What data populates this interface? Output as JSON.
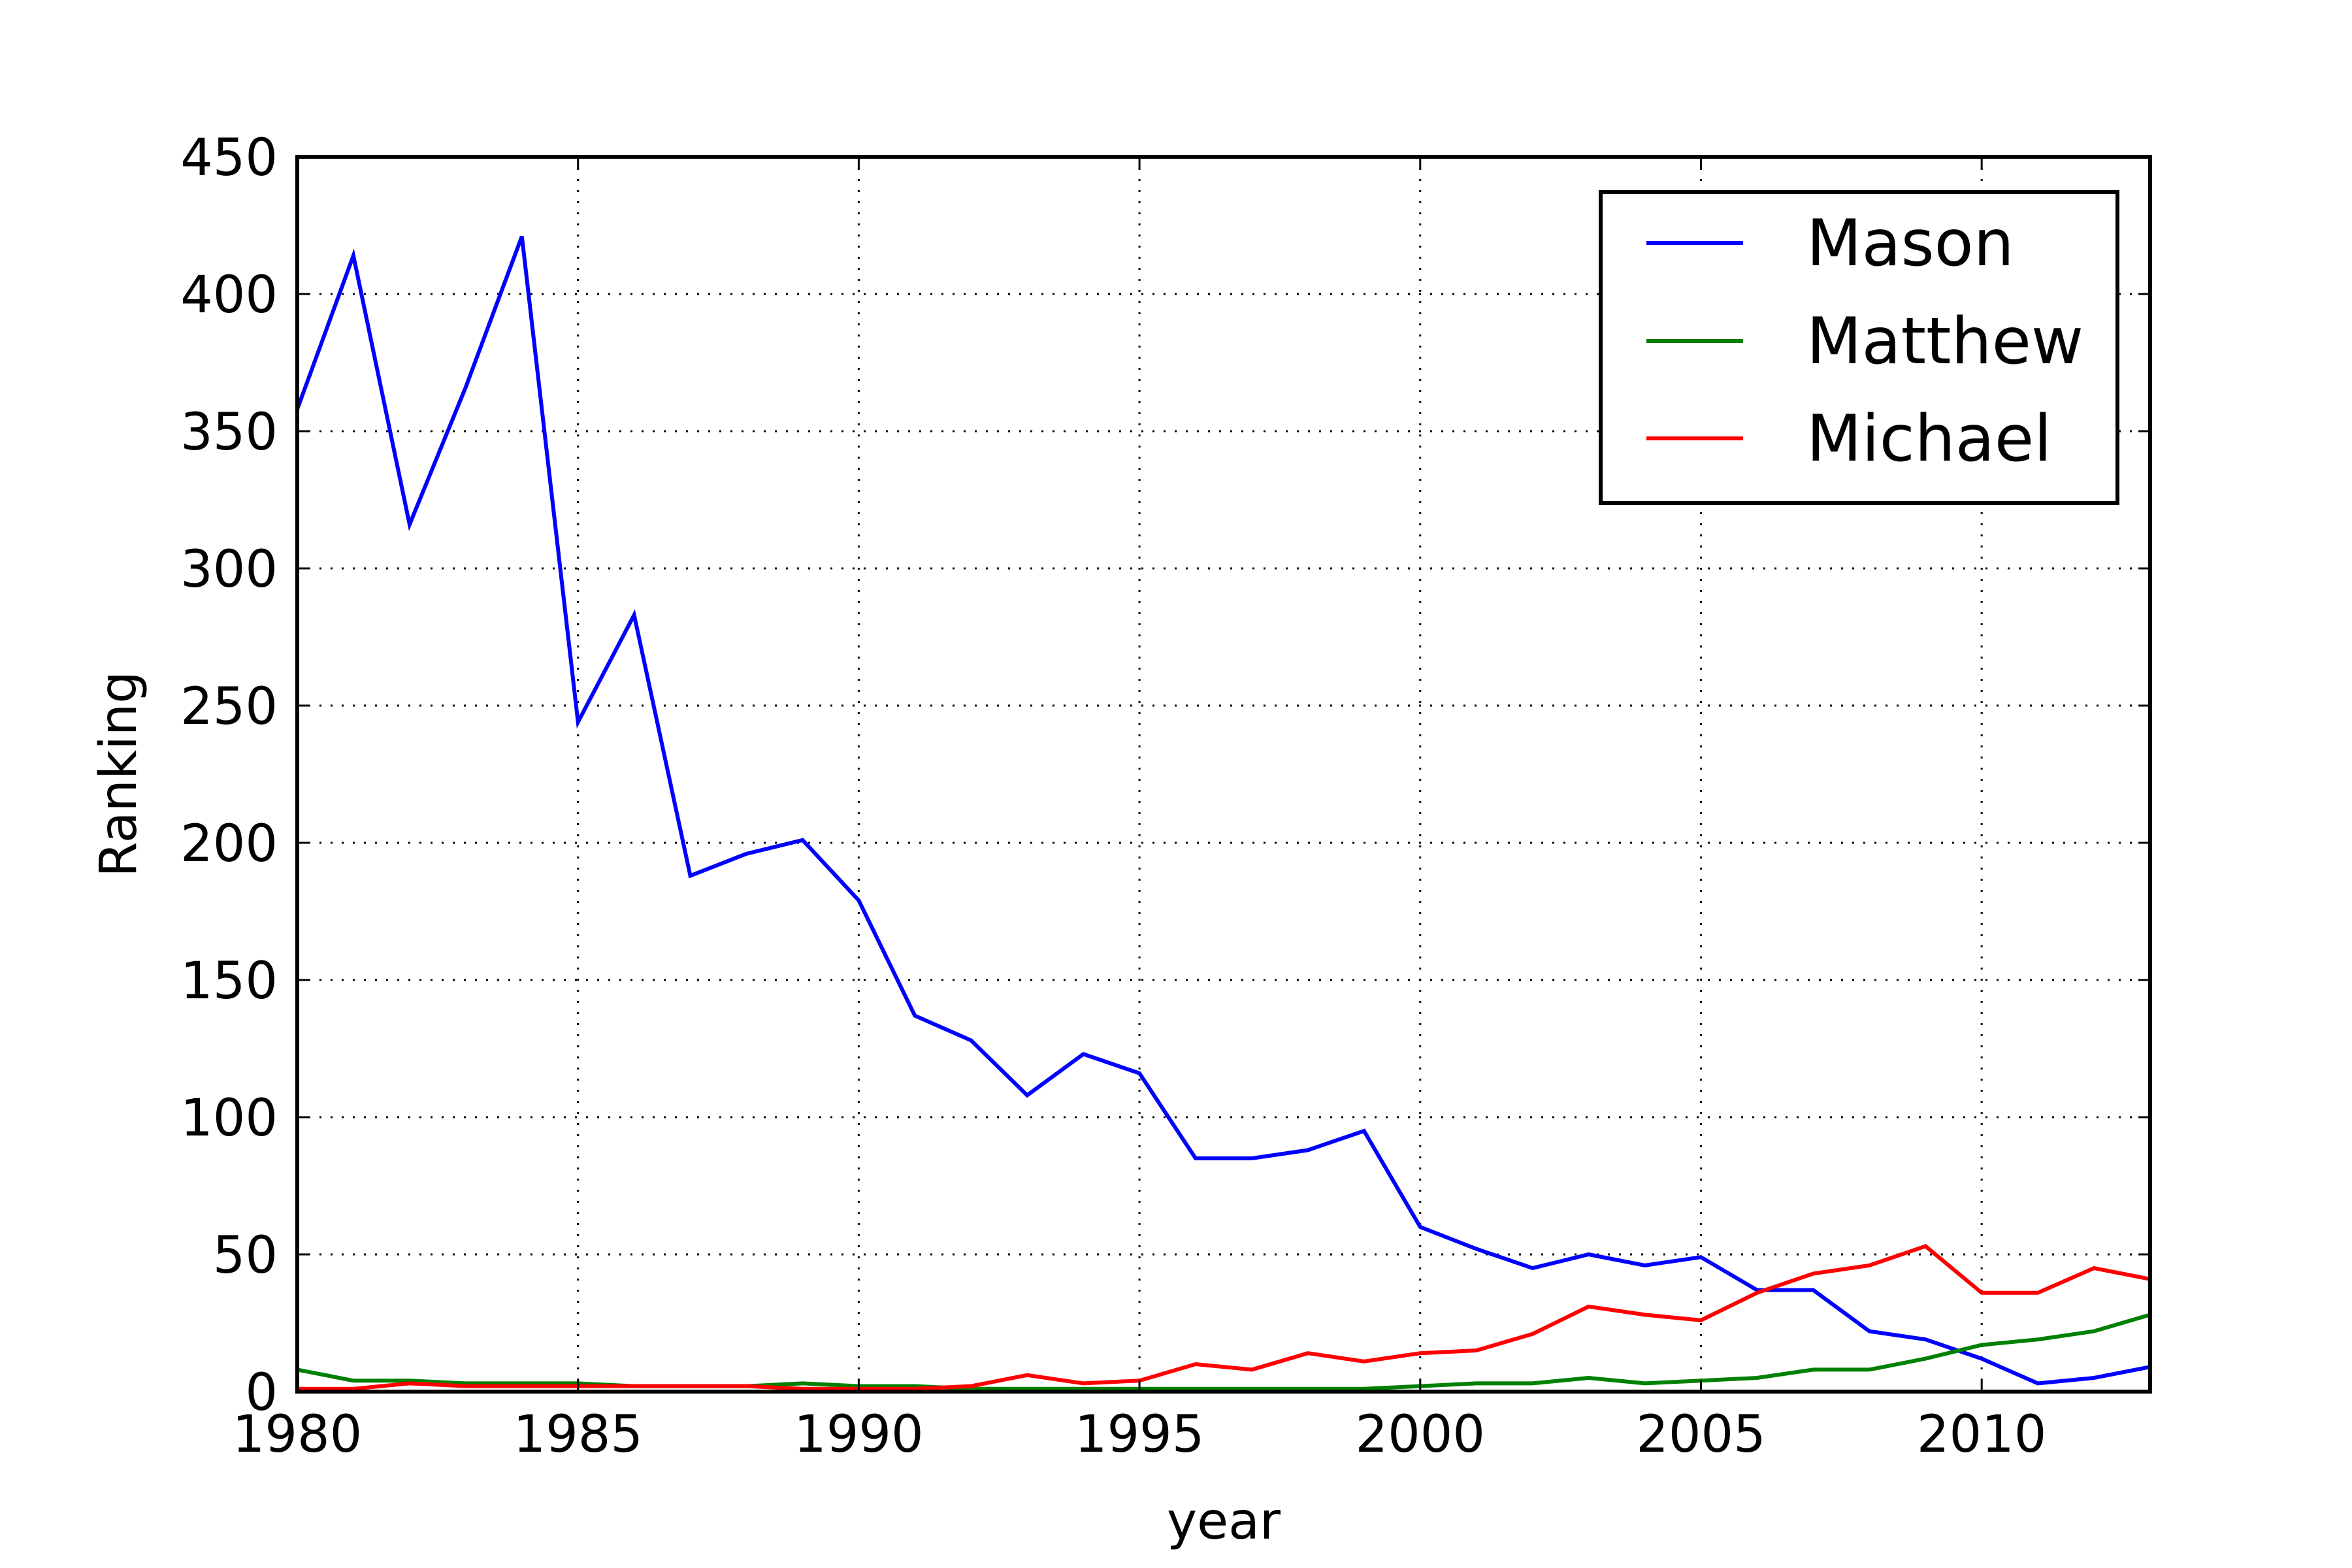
{
  "chart_data": {
    "type": "line",
    "title": "",
    "xlabel": "year",
    "ylabel": "Ranking",
    "xlim": [
      1980,
      2013
    ],
    "ylim": [
      0,
      450
    ],
    "x_ticks": [
      "1980",
      "1985",
      "1990",
      "1995",
      "2000",
      "2005",
      "2010"
    ],
    "y_ticks": [
      "0",
      "50",
      "100",
      "150",
      "200",
      "250",
      "300",
      "350",
      "400",
      "450"
    ],
    "grid": true,
    "legend_position": "top-right",
    "x": [
      1980,
      1981,
      1982,
      1983,
      1984,
      1985,
      1986,
      1987,
      1988,
      1989,
      1990,
      1991,
      1992,
      1993,
      1994,
      1995,
      1996,
      1997,
      1998,
      1999,
      2000,
      2001,
      2002,
      2003,
      2004,
      2005,
      2006,
      2007,
      2008,
      2009,
      2010,
      2011,
      2012,
      2013
    ],
    "series": [
      {
        "name": "Mason",
        "color": "#0000ff",
        "values": [
          358,
          414,
          316,
          366,
          421,
          244,
          283,
          188,
          196,
          201,
          179,
          137,
          128,
          108,
          123,
          116,
          85,
          85,
          88,
          95,
          60,
          52,
          45,
          50,
          46,
          49,
          37,
          37,
          22,
          19,
          12,
          3,
          5,
          9
        ]
      },
      {
        "name": "Matthew",
        "color": "#008000",
        "values": [
          8,
          4,
          4,
          3,
          3,
          3,
          2,
          2,
          2,
          3,
          2,
          2,
          1,
          1,
          1,
          1,
          1,
          1,
          1,
          1,
          2,
          3,
          3,
          5,
          3,
          4,
          5,
          8,
          8,
          12,
          17,
          19,
          22,
          28
        ]
      },
      {
        "name": "Michael",
        "color": "#ff0000",
        "values": [
          1,
          1,
          3,
          2,
          2,
          2,
          2,
          2,
          2,
          1,
          1,
          1,
          2,
          6,
          3,
          4,
          10,
          8,
          14,
          11,
          14,
          15,
          21,
          31,
          28,
          26,
          36,
          43,
          46,
          53,
          36,
          36,
          45,
          41
        ]
      }
    ]
  }
}
